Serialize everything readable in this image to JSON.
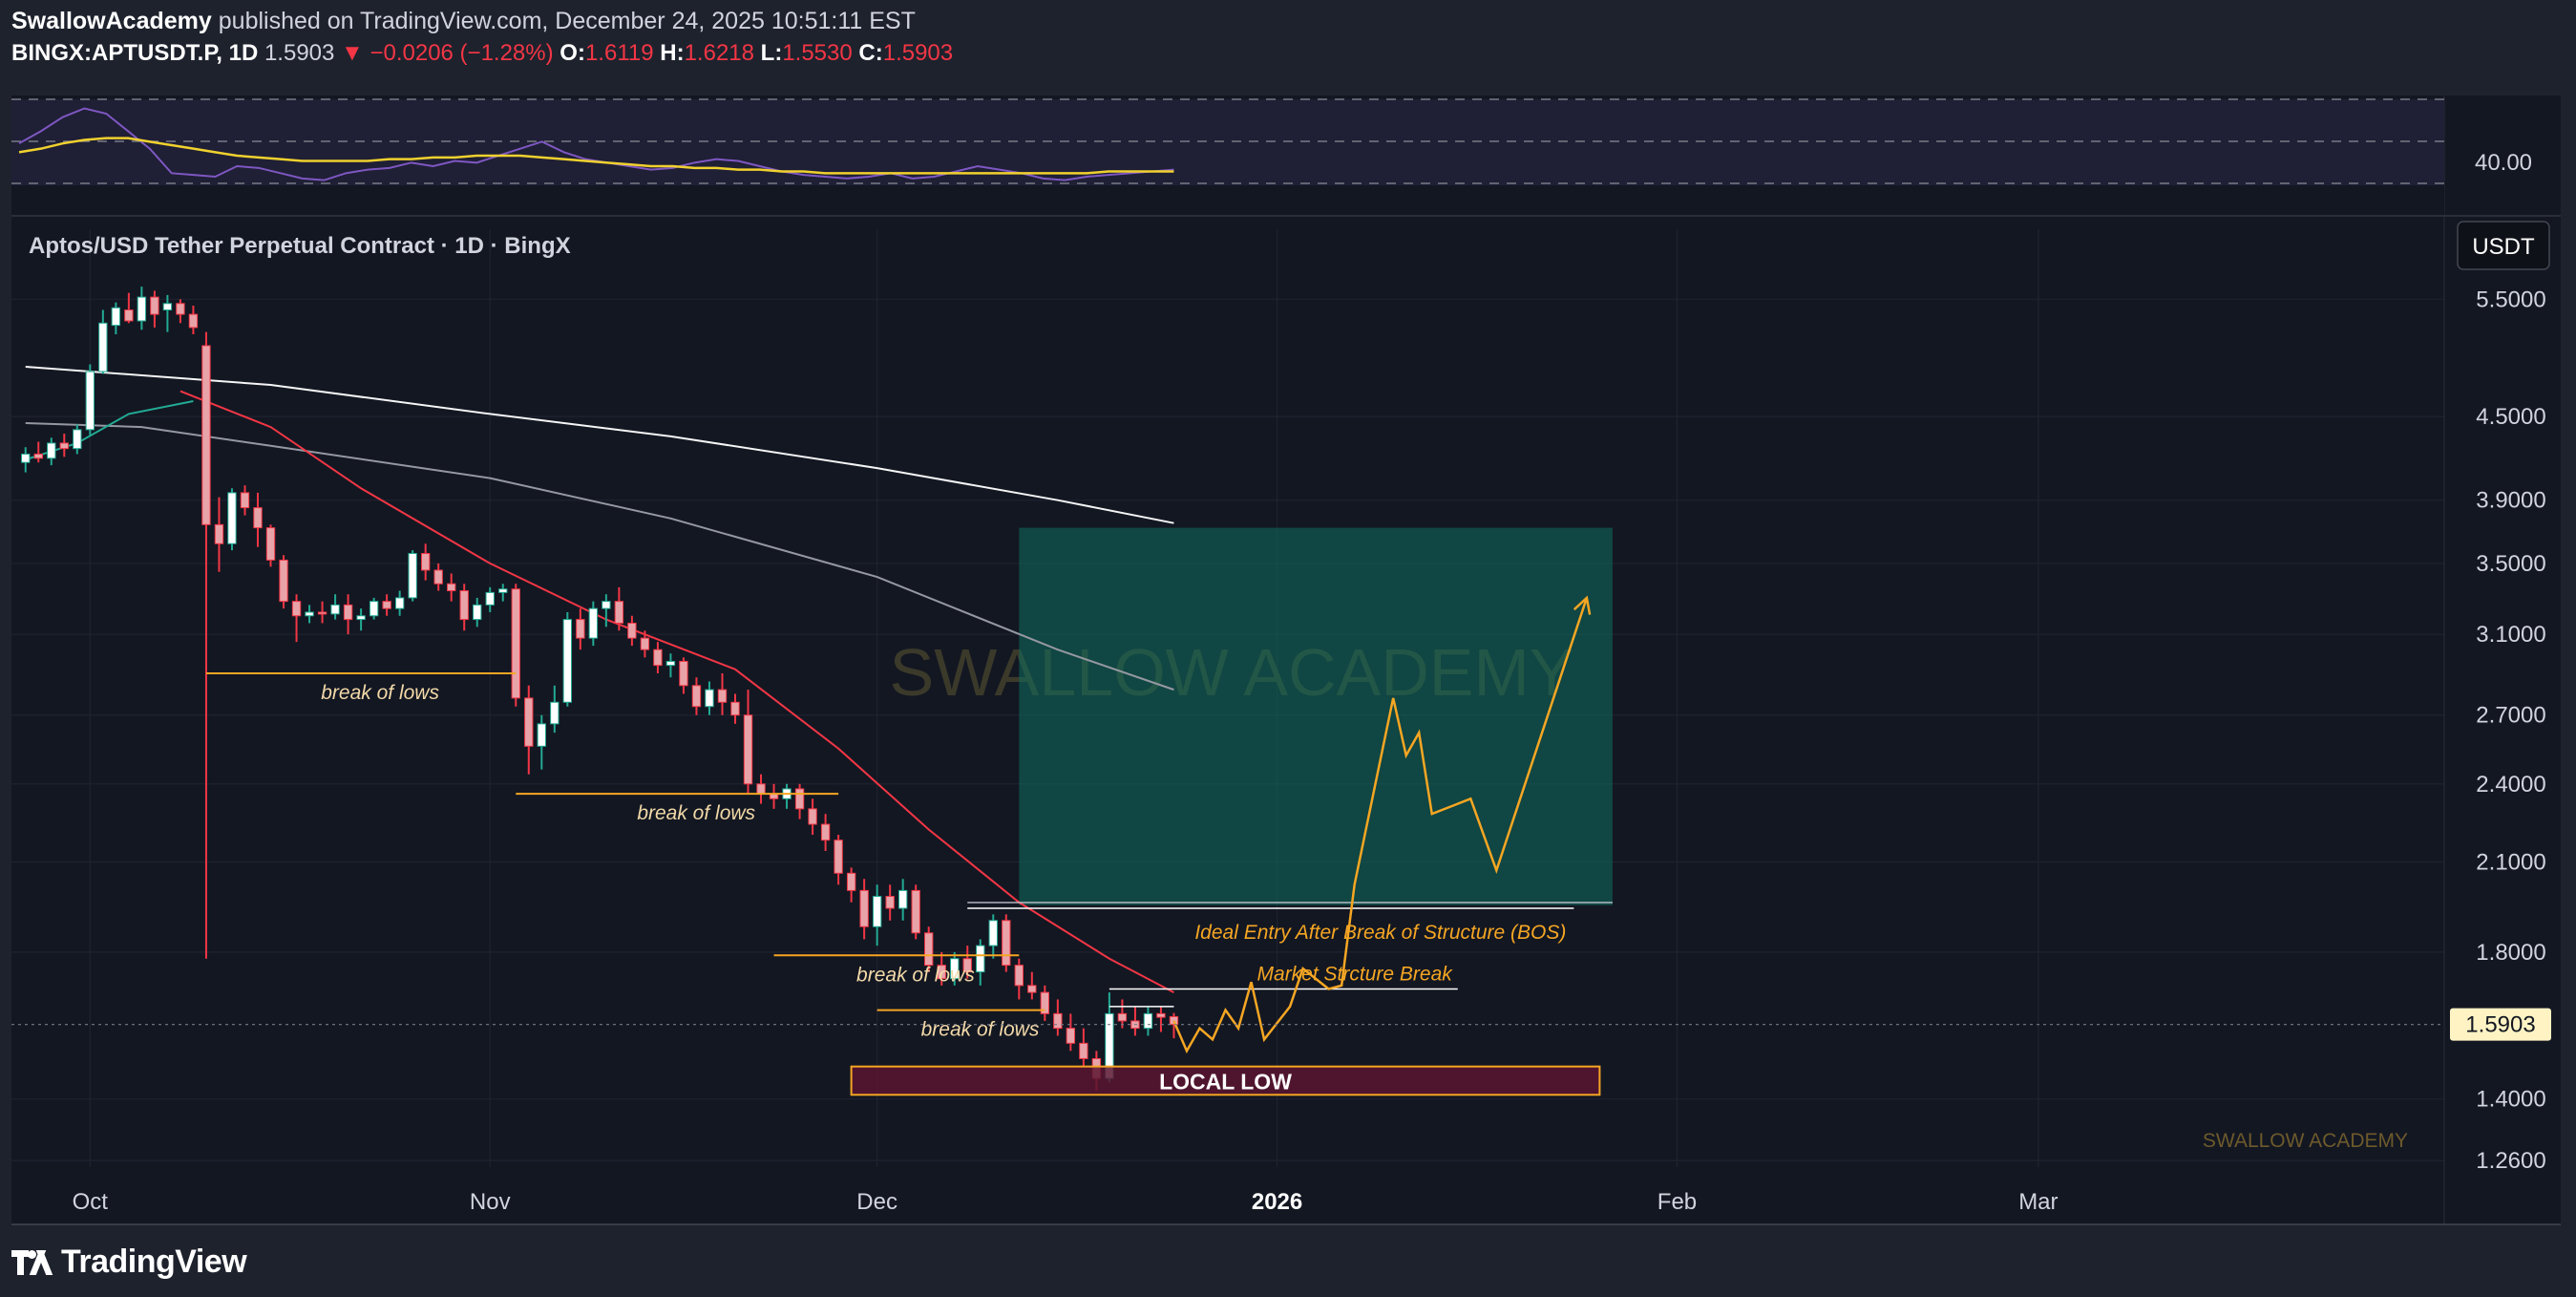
{
  "header": {
    "author": "SwallowAcademy",
    "published": "published on TradingView.com, December 24, 2025 10:51:11 EST",
    "symbol": "BINGX:APTUSDT.P, 1D",
    "last": "1.5903",
    "change": "−0.0206 (−1.28%)",
    "o_label": "O:",
    "o": "1.6119",
    "h_label": "H:",
    "h": "1.6218",
    "l_label": "L:",
    "l": "1.5530",
    "c_label": "C:",
    "c": "1.5903"
  },
  "chart_data": {
    "type": "candlestick",
    "title": "Aptos/USD Tether Perpetual Contract · 1D · BingX",
    "currency_button": "USDT",
    "y_scale": "log",
    "ylim": [
      1.2,
      6.2
    ],
    "y_ticks": [
      "5.5000",
      "4.5000",
      "3.9000",
      "3.5000",
      "3.1000",
      "2.7000",
      "2.4000",
      "2.1000",
      "1.8000",
      "1.4000",
      "1.2600"
    ],
    "x_ticks": [
      {
        "label": "Oct",
        "date": "2025-10-01",
        "bold": false
      },
      {
        "label": "Nov",
        "date": "2025-11-01",
        "bold": false
      },
      {
        "label": "Dec",
        "date": "2025-12-01",
        "bold": false
      },
      {
        "label": "2026",
        "date": "2026-01-01",
        "bold": true
      },
      {
        "label": "Feb",
        "date": "2026-02-01",
        "bold": false
      },
      {
        "label": "Mar",
        "date": "2026-03-01",
        "bold": false
      }
    ],
    "x_range": [
      "2025-09-26",
      "2026-03-30"
    ],
    "last_price": {
      "value": 1.5903,
      "label": "1.5903"
    },
    "candles": [
      {
        "d": "2025-09-26",
        "o": 4.16,
        "h": 4.27,
        "l": 4.09,
        "c": 4.22
      },
      {
        "d": "2025-09-27",
        "o": 4.22,
        "h": 4.31,
        "l": 4.16,
        "c": 4.19
      },
      {
        "d": "2025-09-28",
        "o": 4.19,
        "h": 4.34,
        "l": 4.14,
        "c": 4.3
      },
      {
        "d": "2025-09-29",
        "o": 4.3,
        "h": 4.37,
        "l": 4.2,
        "c": 4.26
      },
      {
        "d": "2025-09-30",
        "o": 4.26,
        "h": 4.44,
        "l": 4.22,
        "c": 4.4
      },
      {
        "d": "2025-10-01",
        "o": 4.4,
        "h": 4.92,
        "l": 4.36,
        "c": 4.86
      },
      {
        "d": "2025-10-02",
        "o": 4.86,
        "h": 5.4,
        "l": 4.84,
        "c": 5.28
      },
      {
        "d": "2025-10-03",
        "o": 5.26,
        "h": 5.47,
        "l": 5.18,
        "c": 5.42
      },
      {
        "d": "2025-10-04",
        "o": 5.4,
        "h": 5.56,
        "l": 5.28,
        "c": 5.3
      },
      {
        "d": "2025-10-05",
        "o": 5.3,
        "h": 5.62,
        "l": 5.22,
        "c": 5.52
      },
      {
        "d": "2025-10-06",
        "o": 5.52,
        "h": 5.58,
        "l": 5.24,
        "c": 5.36
      },
      {
        "d": "2025-10-07",
        "o": 5.4,
        "h": 5.54,
        "l": 5.2,
        "c": 5.46
      },
      {
        "d": "2025-10-08",
        "o": 5.46,
        "h": 5.5,
        "l": 5.28,
        "c": 5.36
      },
      {
        "d": "2025-10-09",
        "o": 5.36,
        "h": 5.44,
        "l": 5.18,
        "c": 5.24
      },
      {
        "d": "2025-10-10",
        "o": 5.08,
        "h": 5.2,
        "l": 1.78,
        "c": 3.74
      },
      {
        "d": "2025-10-11",
        "o": 3.74,
        "h": 3.92,
        "l": 3.45,
        "c": 3.62
      },
      {
        "d": "2025-10-12",
        "o": 3.62,
        "h": 3.98,
        "l": 3.58,
        "c": 3.95
      },
      {
        "d": "2025-10-13",
        "o": 3.95,
        "h": 4.0,
        "l": 3.8,
        "c": 3.85
      },
      {
        "d": "2025-10-14",
        "o": 3.85,
        "h": 3.95,
        "l": 3.6,
        "c": 3.72
      },
      {
        "d": "2025-10-15",
        "o": 3.72,
        "h": 3.74,
        "l": 3.48,
        "c": 3.52
      },
      {
        "d": "2025-10-16",
        "o": 3.52,
        "h": 3.55,
        "l": 3.24,
        "c": 3.28
      },
      {
        "d": "2025-10-17",
        "o": 3.28,
        "h": 3.32,
        "l": 3.06,
        "c": 3.2
      },
      {
        "d": "2025-10-18",
        "o": 3.2,
        "h": 3.26,
        "l": 3.16,
        "c": 3.22
      },
      {
        "d": "2025-10-19",
        "o": 3.22,
        "h": 3.28,
        "l": 3.16,
        "c": 3.21
      },
      {
        "d": "2025-10-20",
        "o": 3.21,
        "h": 3.32,
        "l": 3.18,
        "c": 3.26
      },
      {
        "d": "2025-10-21",
        "o": 3.26,
        "h": 3.32,
        "l": 3.1,
        "c": 3.18
      },
      {
        "d": "2025-10-22",
        "o": 3.18,
        "h": 3.24,
        "l": 3.12,
        "c": 3.2
      },
      {
        "d": "2025-10-23",
        "o": 3.2,
        "h": 3.3,
        "l": 3.18,
        "c": 3.28
      },
      {
        "d": "2025-10-24",
        "o": 3.28,
        "h": 3.32,
        "l": 3.2,
        "c": 3.24
      },
      {
        "d": "2025-10-25",
        "o": 3.24,
        "h": 3.34,
        "l": 3.2,
        "c": 3.3
      },
      {
        "d": "2025-10-26",
        "o": 3.3,
        "h": 3.58,
        "l": 3.28,
        "c": 3.56
      },
      {
        "d": "2025-10-27",
        "o": 3.56,
        "h": 3.62,
        "l": 3.4,
        "c": 3.46
      },
      {
        "d": "2025-10-28",
        "o": 3.46,
        "h": 3.5,
        "l": 3.34,
        "c": 3.38
      },
      {
        "d": "2025-10-29",
        "o": 3.38,
        "h": 3.44,
        "l": 3.28,
        "c": 3.34
      },
      {
        "d": "2025-10-30",
        "o": 3.34,
        "h": 3.38,
        "l": 3.12,
        "c": 3.18
      },
      {
        "d": "2025-10-31",
        "o": 3.18,
        "h": 3.3,
        "l": 3.14,
        "c": 3.26
      },
      {
        "d": "2025-11-01",
        "o": 3.26,
        "h": 3.36,
        "l": 3.22,
        "c": 3.33
      },
      {
        "d": "2025-11-02",
        "o": 3.33,
        "h": 3.38,
        "l": 3.28,
        "c": 3.35
      },
      {
        "d": "2025-11-03",
        "o": 3.35,
        "h": 3.38,
        "l": 2.74,
        "c": 2.78
      },
      {
        "d": "2025-11-04",
        "o": 2.78,
        "h": 2.84,
        "l": 2.44,
        "c": 2.56
      },
      {
        "d": "2025-11-05",
        "o": 2.56,
        "h": 2.7,
        "l": 2.46,
        "c": 2.66
      },
      {
        "d": "2025-11-06",
        "o": 2.66,
        "h": 2.84,
        "l": 2.62,
        "c": 2.76
      },
      {
        "d": "2025-11-07",
        "o": 2.76,
        "h": 3.22,
        "l": 2.74,
        "c": 3.18
      },
      {
        "d": "2025-11-08",
        "o": 3.18,
        "h": 3.24,
        "l": 3.02,
        "c": 3.08
      },
      {
        "d": "2025-11-09",
        "o": 3.08,
        "h": 3.28,
        "l": 3.04,
        "c": 3.24
      },
      {
        "d": "2025-11-10",
        "o": 3.24,
        "h": 3.32,
        "l": 3.14,
        "c": 3.28
      },
      {
        "d": "2025-11-11",
        "o": 3.28,
        "h": 3.36,
        "l": 3.12,
        "c": 3.16
      },
      {
        "d": "2025-11-12",
        "o": 3.16,
        "h": 3.2,
        "l": 3.04,
        "c": 3.08
      },
      {
        "d": "2025-11-13",
        "o": 3.08,
        "h": 3.12,
        "l": 2.98,
        "c": 3.02
      },
      {
        "d": "2025-11-14",
        "o": 3.02,
        "h": 3.06,
        "l": 2.9,
        "c": 2.94
      },
      {
        "d": "2025-11-15",
        "o": 2.94,
        "h": 3.0,
        "l": 2.88,
        "c": 2.96
      },
      {
        "d": "2025-11-16",
        "o": 2.96,
        "h": 2.98,
        "l": 2.8,
        "c": 2.84
      },
      {
        "d": "2025-11-17",
        "o": 2.84,
        "h": 2.88,
        "l": 2.7,
        "c": 2.74
      },
      {
        "d": "2025-11-18",
        "o": 2.74,
        "h": 2.86,
        "l": 2.7,
        "c": 2.82
      },
      {
        "d": "2025-11-19",
        "o": 2.82,
        "h": 2.9,
        "l": 2.7,
        "c": 2.76
      },
      {
        "d": "2025-11-20",
        "o": 2.76,
        "h": 2.8,
        "l": 2.66,
        "c": 2.7
      },
      {
        "d": "2025-11-21",
        "o": 2.7,
        "h": 2.82,
        "l": 2.36,
        "c": 2.4
      },
      {
        "d": "2025-11-22",
        "o": 2.4,
        "h": 2.44,
        "l": 2.32,
        "c": 2.36
      },
      {
        "d": "2025-11-23",
        "o": 2.36,
        "h": 2.4,
        "l": 2.3,
        "c": 2.34
      },
      {
        "d": "2025-11-24",
        "o": 2.34,
        "h": 2.4,
        "l": 2.3,
        "c": 2.38
      },
      {
        "d": "2025-11-25",
        "o": 2.38,
        "h": 2.4,
        "l": 2.26,
        "c": 2.3
      },
      {
        "d": "2025-11-26",
        "o": 2.3,
        "h": 2.34,
        "l": 2.2,
        "c": 2.24
      },
      {
        "d": "2025-11-27",
        "o": 2.24,
        "h": 2.28,
        "l": 2.14,
        "c": 2.18
      },
      {
        "d": "2025-11-28",
        "o": 2.18,
        "h": 2.2,
        "l": 2.02,
        "c": 2.06
      },
      {
        "d": "2025-11-29",
        "o": 2.06,
        "h": 2.08,
        "l": 1.96,
        "c": 2.0
      },
      {
        "d": "2025-11-30",
        "o": 2.0,
        "h": 2.04,
        "l": 1.84,
        "c": 1.88
      },
      {
        "d": "2025-12-01",
        "o": 1.88,
        "h": 2.02,
        "l": 1.82,
        "c": 1.98
      },
      {
        "d": "2025-12-02",
        "o": 1.98,
        "h": 2.02,
        "l": 1.9,
        "c": 1.94
      },
      {
        "d": "2025-12-03",
        "o": 1.94,
        "h": 2.04,
        "l": 1.9,
        "c": 2.0
      },
      {
        "d": "2025-12-04",
        "o": 2.0,
        "h": 2.02,
        "l": 1.84,
        "c": 1.86
      },
      {
        "d": "2025-12-05",
        "o": 1.86,
        "h": 1.88,
        "l": 1.74,
        "c": 1.76
      },
      {
        "d": "2025-12-06",
        "o": 1.76,
        "h": 1.8,
        "l": 1.7,
        "c": 1.72
      },
      {
        "d": "2025-12-07",
        "o": 1.72,
        "h": 1.8,
        "l": 1.7,
        "c": 1.78
      },
      {
        "d": "2025-12-08",
        "o": 1.78,
        "h": 1.82,
        "l": 1.72,
        "c": 1.74
      },
      {
        "d": "2025-12-09",
        "o": 1.74,
        "h": 1.84,
        "l": 1.7,
        "c": 1.82
      },
      {
        "d": "2025-12-10",
        "o": 1.82,
        "h": 1.92,
        "l": 1.78,
        "c": 1.9
      },
      {
        "d": "2025-12-11",
        "o": 1.9,
        "h": 1.92,
        "l": 1.74,
        "c": 1.76
      },
      {
        "d": "2025-12-12",
        "o": 1.76,
        "h": 1.78,
        "l": 1.66,
        "c": 1.7
      },
      {
        "d": "2025-12-13",
        "o": 1.7,
        "h": 1.74,
        "l": 1.66,
        "c": 1.68
      },
      {
        "d": "2025-12-14",
        "o": 1.68,
        "h": 1.7,
        "l": 1.6,
        "c": 1.62
      },
      {
        "d": "2025-12-15",
        "o": 1.62,
        "h": 1.66,
        "l": 1.56,
        "c": 1.58
      },
      {
        "d": "2025-12-16",
        "o": 1.58,
        "h": 1.62,
        "l": 1.52,
        "c": 1.54
      },
      {
        "d": "2025-12-17",
        "o": 1.54,
        "h": 1.58,
        "l": 1.48,
        "c": 1.5
      },
      {
        "d": "2025-12-18",
        "o": 1.5,
        "h": 1.52,
        "l": 1.42,
        "c": 1.45
      },
      {
        "d": "2025-12-19",
        "o": 1.45,
        "h": 1.68,
        "l": 1.44,
        "c": 1.62
      },
      {
        "d": "2025-12-20",
        "o": 1.62,
        "h": 1.66,
        "l": 1.58,
        "c": 1.6
      },
      {
        "d": "2025-12-21",
        "o": 1.6,
        "h": 1.64,
        "l": 1.56,
        "c": 1.58
      },
      {
        "d": "2025-12-22",
        "o": 1.58,
        "h": 1.64,
        "l": 1.56,
        "c": 1.62
      },
      {
        "d": "2025-12-23",
        "o": 1.62,
        "h": 1.64,
        "l": 1.57,
        "c": 1.61
      },
      {
        "d": "2025-12-24",
        "o": 1.6119,
        "h": 1.6218,
        "l": 1.553,
        "c": 1.5903
      }
    ],
    "moving_averages": [
      {
        "color": "#f5f5f5",
        "points": [
          [
            "2025-09-26",
            4.9
          ],
          [
            "2025-10-15",
            4.75
          ],
          [
            "2025-11-01",
            4.52
          ],
          [
            "2025-11-15",
            4.35
          ],
          [
            "2025-12-01",
            4.12
          ],
          [
            "2025-12-15",
            3.9
          ],
          [
            "2025-12-24",
            3.75
          ]
        ]
      },
      {
        "color": "#9598a1",
        "points": [
          [
            "2025-09-26",
            4.45
          ],
          [
            "2025-10-05",
            4.42
          ],
          [
            "2025-10-15",
            4.28
          ],
          [
            "2025-11-01",
            4.05
          ],
          [
            "2025-11-15",
            3.78
          ],
          [
            "2025-12-01",
            3.42
          ],
          [
            "2025-12-15",
            3.02
          ],
          [
            "2025-12-24",
            2.82
          ]
        ]
      },
      {
        "color": "#f23645",
        "points": [
          [
            "2025-10-08",
            4.7
          ],
          [
            "2025-10-15",
            4.42
          ],
          [
            "2025-10-22",
            3.98
          ],
          [
            "2025-11-01",
            3.5
          ],
          [
            "2025-11-10",
            3.18
          ],
          [
            "2025-11-20",
            2.92
          ],
          [
            "2025-11-28",
            2.55
          ],
          [
            "2025-12-05",
            2.22
          ],
          [
            "2025-12-12",
            1.96
          ],
          [
            "2025-12-19",
            1.78
          ],
          [
            "2025-12-24",
            1.68
          ]
        ]
      },
      {
        "color": "#22ab94",
        "points": [
          [
            "2025-09-26",
            4.18
          ],
          [
            "2025-09-30",
            4.3
          ],
          [
            "2025-10-04",
            4.52
          ],
          [
            "2025-10-09",
            4.62
          ]
        ]
      }
    ],
    "annotations": {
      "break_lines": [
        {
          "label": "break of lows",
          "value": 2.9,
          "from": "2025-10-10",
          "to": "2025-11-03"
        },
        {
          "label": "break of lows",
          "value": 2.36,
          "from": "2025-11-03",
          "to": "2025-11-28"
        },
        {
          "label": "break of lows",
          "value": 1.79,
          "from": "2025-11-23",
          "to": "2025-12-12"
        },
        {
          "label": "break of lows",
          "value": 1.63,
          "from": "2025-12-01",
          "to": "2025-12-14"
        }
      ],
      "bos": {
        "label": "Ideal Entry After Break of Structure (BOS)",
        "value": 1.94,
        "from": "2025-12-08",
        "to": "2026-01-24"
      },
      "msb": {
        "label": "Market Strcture Break",
        "value": 1.69,
        "from": "2025-12-19",
        "to": "2026-01-15"
      },
      "msb_short": {
        "value": 1.64,
        "from": "2025-12-19",
        "to": "2025-12-24"
      },
      "local_low": {
        "label": "LOCAL LOW",
        "top": 1.48,
        "bottom": 1.41,
        "from": "2025-11-29",
        "to": "2026-01-26"
      },
      "target_zone": {
        "top": 3.72,
        "bottom": 1.95,
        "from": "2025-12-12",
        "to": "2026-01-27"
      },
      "projection": [
        [
          "2025-12-24",
          1.6
        ],
        [
          "2025-12-25",
          1.52
        ],
        [
          "2025-12-26",
          1.58
        ],
        [
          "2025-12-27",
          1.55
        ],
        [
          "2025-12-28",
          1.63
        ],
        [
          "2025-12-29",
          1.58
        ],
        [
          "2025-12-30",
          1.71
        ],
        [
          "2025-12-31",
          1.55
        ],
        [
          "2026-01-02",
          1.64
        ],
        [
          "2026-01-03",
          1.75
        ],
        [
          "2026-01-05",
          1.69
        ],
        [
          "2026-01-06",
          1.7
        ],
        [
          "2026-01-07",
          2.02
        ],
        [
          "2026-01-09",
          2.5
        ],
        [
          "2026-01-10",
          2.78
        ],
        [
          "2026-01-11",
          2.52
        ],
        [
          "2026-01-12",
          2.62
        ],
        [
          "2026-01-13",
          2.28
        ],
        [
          "2026-01-16",
          2.34
        ],
        [
          "2026-01-18",
          2.07
        ],
        [
          "2026-01-25",
          3.3
        ]
      ]
    },
    "watermark": "SWALLOW ACADEMY",
    "watermark_small": "SWALLOW ACADEMY",
    "indicator": {
      "level_label": "40.00",
      "rsi": [
        55,
        62,
        70,
        75,
        72,
        62,
        52,
        38,
        37,
        36,
        42,
        41,
        38,
        35,
        34,
        38,
        40,
        41,
        44,
        42,
        45,
        44,
        48,
        52,
        56,
        50,
        46,
        44,
        42,
        40,
        41,
        44,
        46,
        45,
        42,
        39,
        37,
        36,
        35,
        36,
        38,
        35,
        36,
        39,
        42,
        40,
        38,
        35,
        34,
        36,
        37,
        38,
        39,
        40
      ],
      "signal": [
        50,
        52,
        55,
        57,
        58,
        58,
        56,
        54,
        52,
        50,
        48,
        47,
        46,
        45,
        45,
        45,
        45,
        46,
        46,
        47,
        47,
        48,
        48,
        48,
        47,
        46,
        45,
        44,
        43,
        42,
        42,
        41,
        41,
        40,
        40,
        39,
        39,
        38,
        38,
        38,
        38,
        38,
        38,
        38,
        38,
        38,
        38,
        38,
        38,
        38,
        39,
        39,
        39,
        39
      ]
    }
  },
  "footer": {
    "brand": "TradingView"
  }
}
